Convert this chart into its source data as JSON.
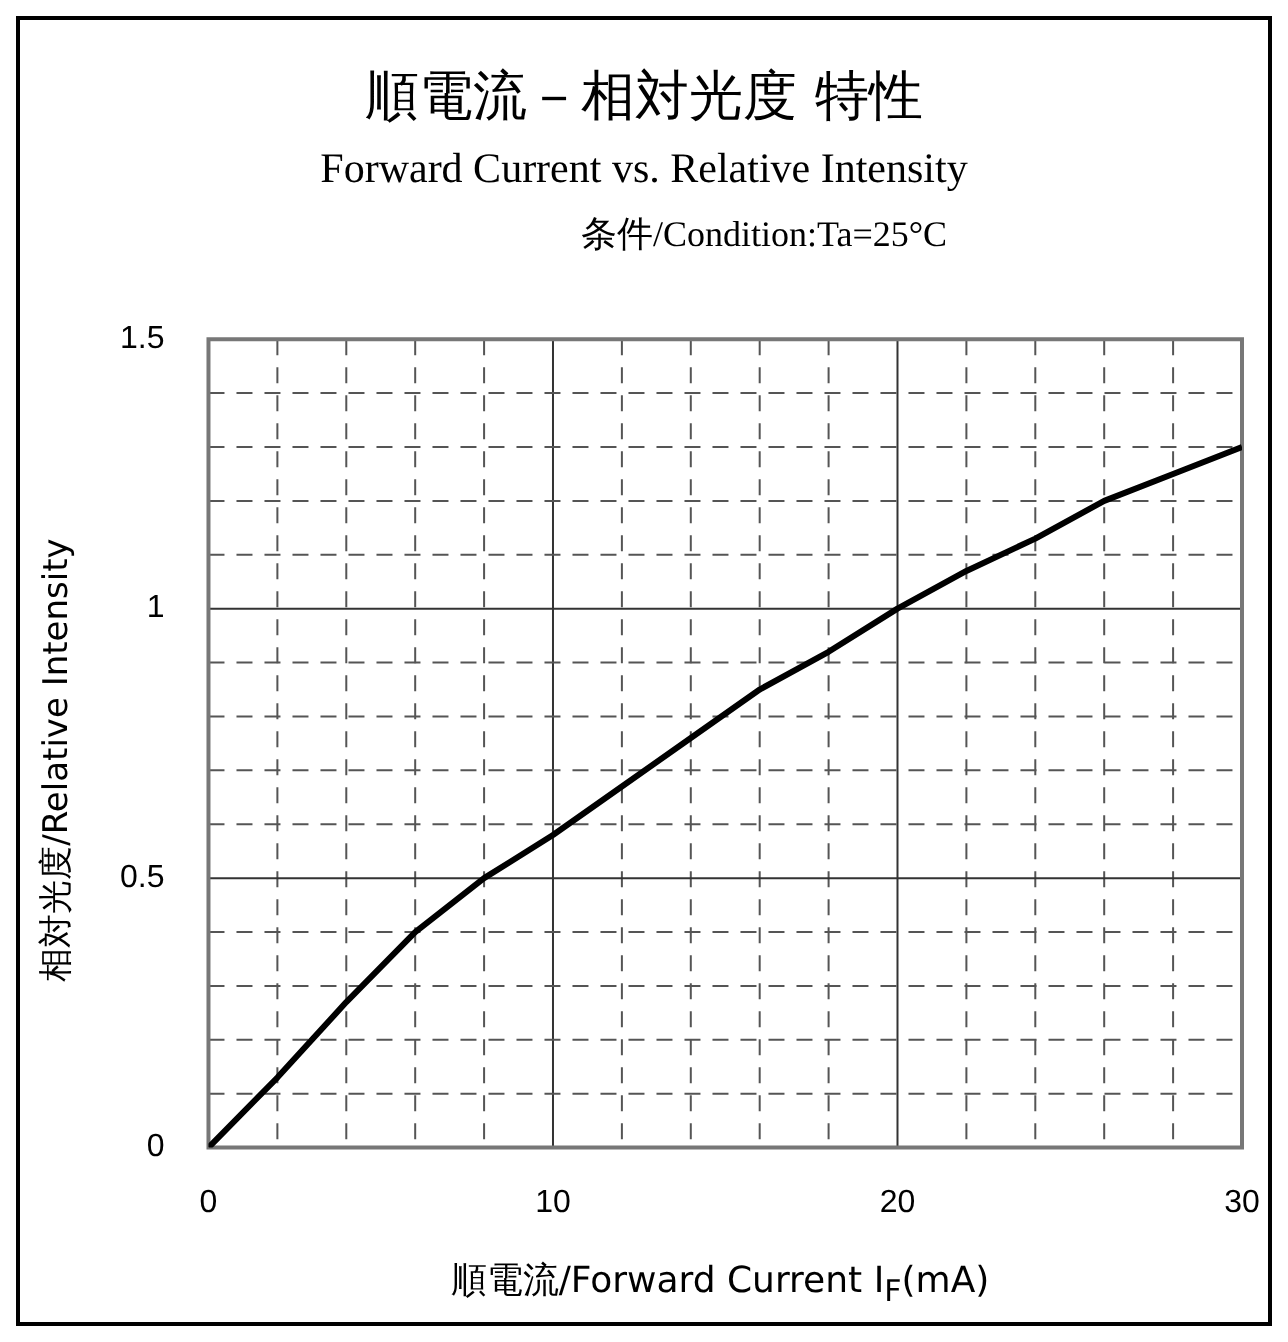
{
  "chart_data": {
    "type": "line",
    "title": "順電流－相対光度 特性",
    "subtitle": "Forward Current vs. Relative Intensity",
    "annotations": [
      "条件/Condition:Ta=25°C"
    ],
    "xlabel": "順電流/Forward Current I$_{F}$(mA)",
    "ylabel": "相対光度/Relative Intensity",
    "x": [
      0,
      2,
      4,
      6,
      8,
      10,
      12,
      14,
      16,
      18,
      20,
      22,
      24,
      26,
      28,
      30
    ],
    "series": [
      {
        "color": "#000000",
        "values": [
          0,
          0.13,
          0.27,
          0.4,
          0.5,
          0.58,
          0.67,
          0.76,
          0.85,
          0.92,
          1.0,
          1.07,
          1.13,
          1.2,
          1.25,
          1.3
        ]
      }
    ],
    "xlim": [
      0,
      30
    ],
    "xticks": [
      0,
      {
        "value": 2,
        "label": null
      },
      {
        "value": 4,
        "label": null
      },
      {
        "value": 6,
        "label": null
      },
      {
        "value": 8,
        "label": null
      },
      10,
      {
        "value": 12,
        "label": null
      },
      {
        "value": 14,
        "label": null
      },
      {
        "value": 16,
        "label": null
      },
      {
        "value": 18,
        "label": null
      },
      20,
      {
        "value": 22,
        "label": null
      },
      {
        "value": 24,
        "label": null
      },
      {
        "value": 26,
        "label": null
      },
      {
        "value": 28,
        "label": null
      },
      30
    ],
    "ylim": [
      0,
      1.5
    ],
    "yticks": [
      0,
      {
        "value": 0.1,
        "label": null
      },
      {
        "value": 0.2,
        "label": null
      },
      {
        "value": 0.3,
        "label": null
      },
      {
        "value": 0.4,
        "label": null
      },
      0.5,
      {
        "value": 0.6,
        "label": null
      },
      {
        "value": 0.7,
        "label": null
      },
      {
        "value": 0.8,
        "label": null
      },
      {
        "value": 0.9,
        "label": null
      },
      1,
      {
        "value": 1.1,
        "label": null
      },
      {
        "value": 1.2,
        "label": null
      },
      {
        "value": 1.3,
        "label": null
      },
      {
        "value": 1.4,
        "label": null
      },
      1.5
    ],
    "grid": true,
    "legend": false,
    "marker": "none",
    "line_style": "solid"
  }
}
